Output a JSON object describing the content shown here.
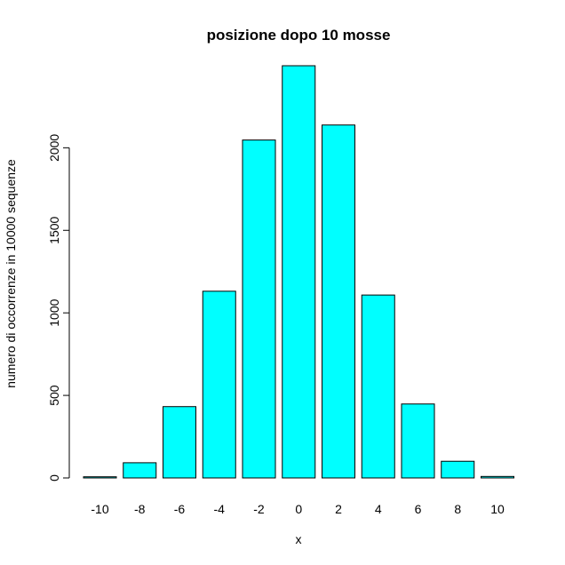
{
  "chart_data": {
    "type": "bar",
    "title": "posizione dopo 10 mosse",
    "xlabel": "x",
    "ylabel": "numero di occorrenze in 10000 sequenze",
    "categories": [
      "-10",
      "-8",
      "-6",
      "-4",
      "-2",
      "0",
      "2",
      "4",
      "6",
      "8",
      "10"
    ],
    "values": [
      7,
      92,
      432,
      1131,
      2047,
      2497,
      2138,
      1108,
      448,
      101,
      9
    ],
    "y_ticks": [
      0,
      500,
      1000,
      1500,
      2000
    ],
    "ylim": [
      0,
      2497
    ],
    "bar_color": "#00ffff",
    "grid": false
  }
}
